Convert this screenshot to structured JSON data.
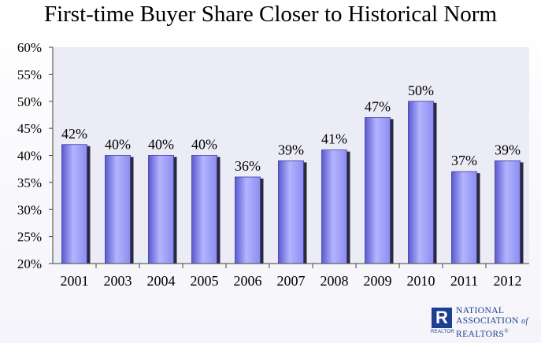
{
  "chart_data": {
    "type": "bar",
    "title": "First-time Buyer Share Closer to Historical Norm",
    "categories": [
      "2001",
      "2003",
      "2004",
      "2005",
      "2006",
      "2007",
      "2008",
      "2009",
      "2010",
      "2011",
      "2012"
    ],
    "values": [
      42,
      40,
      40,
      40,
      36,
      39,
      41,
      47,
      50,
      37,
      39
    ],
    "value_labels": [
      "42%",
      "40%",
      "40%",
      "40%",
      "36%",
      "39%",
      "41%",
      "47%",
      "50%",
      "37%",
      "39%"
    ],
    "ylim": [
      20,
      60
    ],
    "yticks": [
      "20%",
      "25%",
      "30%",
      "35%",
      "40%",
      "45%",
      "50%",
      "55%",
      "60%"
    ],
    "grid": false,
    "colors": {
      "bar": "#8c8cf0",
      "bar_light": "#b4b4ff",
      "bar_dark": "#5a5ad0",
      "plot_bg": "#ececf6",
      "shadow": "#2a2a3a"
    }
  },
  "logo": {
    "line1": "NATIONAL",
    "line2a": "ASSOCIATION",
    "line2b": "of",
    "line3": "REALTORS",
    "reg": "®",
    "mark": "R",
    "sub": "REALTOR"
  }
}
